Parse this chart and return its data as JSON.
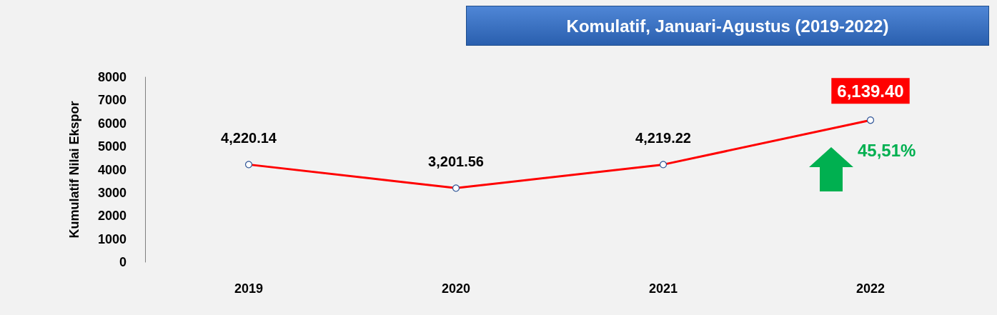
{
  "chart_data": {
    "type": "line",
    "title": "Komulatif, Januari-Agustus (2019-2022)",
    "ylabel": "Kumulatif Nilai Ekspor",
    "categories": [
      "2019",
      "2020",
      "2021",
      "2022"
    ],
    "series": [
      {
        "color": "#ff0000",
        "values": [
          4220.14,
          3201.56,
          4219.22,
          6139.4
        ],
        "value_labels": [
          "4,220.14",
          "3,201.56",
          "4,219.22",
          "6,139.40"
        ]
      }
    ],
    "ylim": [
      0,
      8000
    ],
    "yticks": [
      0,
      1000,
      2000,
      3000,
      4000,
      5000,
      6000,
      7000,
      8000
    ],
    "grid": false,
    "marker": "circle",
    "line_style": "solid",
    "annotations": [
      "45,51%"
    ]
  }
}
